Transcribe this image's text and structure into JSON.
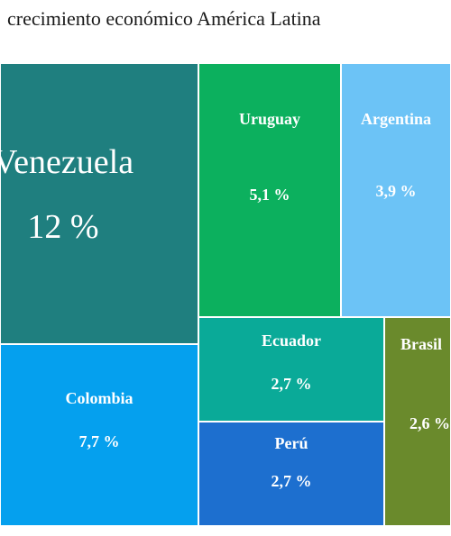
{
  "title": "crecimiento económico América Latina",
  "chart_data": {
    "type": "treemap",
    "title": "crecimiento económico América Latina",
    "unit": "%",
    "items": [
      {
        "name": "Venezuela",
        "value": 12,
        "label": "12 %",
        "color": "#1f7f7f"
      },
      {
        "name": "Colombia",
        "value": 7.7,
        "label": "7,7 %",
        "color": "#05a0ee"
      },
      {
        "name": "Uruguay",
        "value": 5.1,
        "label": "5,1 %",
        "color": "#0cb05e"
      },
      {
        "name": "Argentina",
        "value": 3.9,
        "label": "3,9 %",
        "color": "#6cc3f6"
      },
      {
        "name": "Ecuador",
        "value": 2.7,
        "label": "2,7 %",
        "color": "#0aaa98"
      },
      {
        "name": "Perú",
        "value": 2.7,
        "label": "2,7 %",
        "color": "#1d6fcf"
      },
      {
        "name": "Brasil",
        "value": 2.6,
        "label": "2,6 %",
        "color": "#6a8a2c"
      }
    ]
  }
}
